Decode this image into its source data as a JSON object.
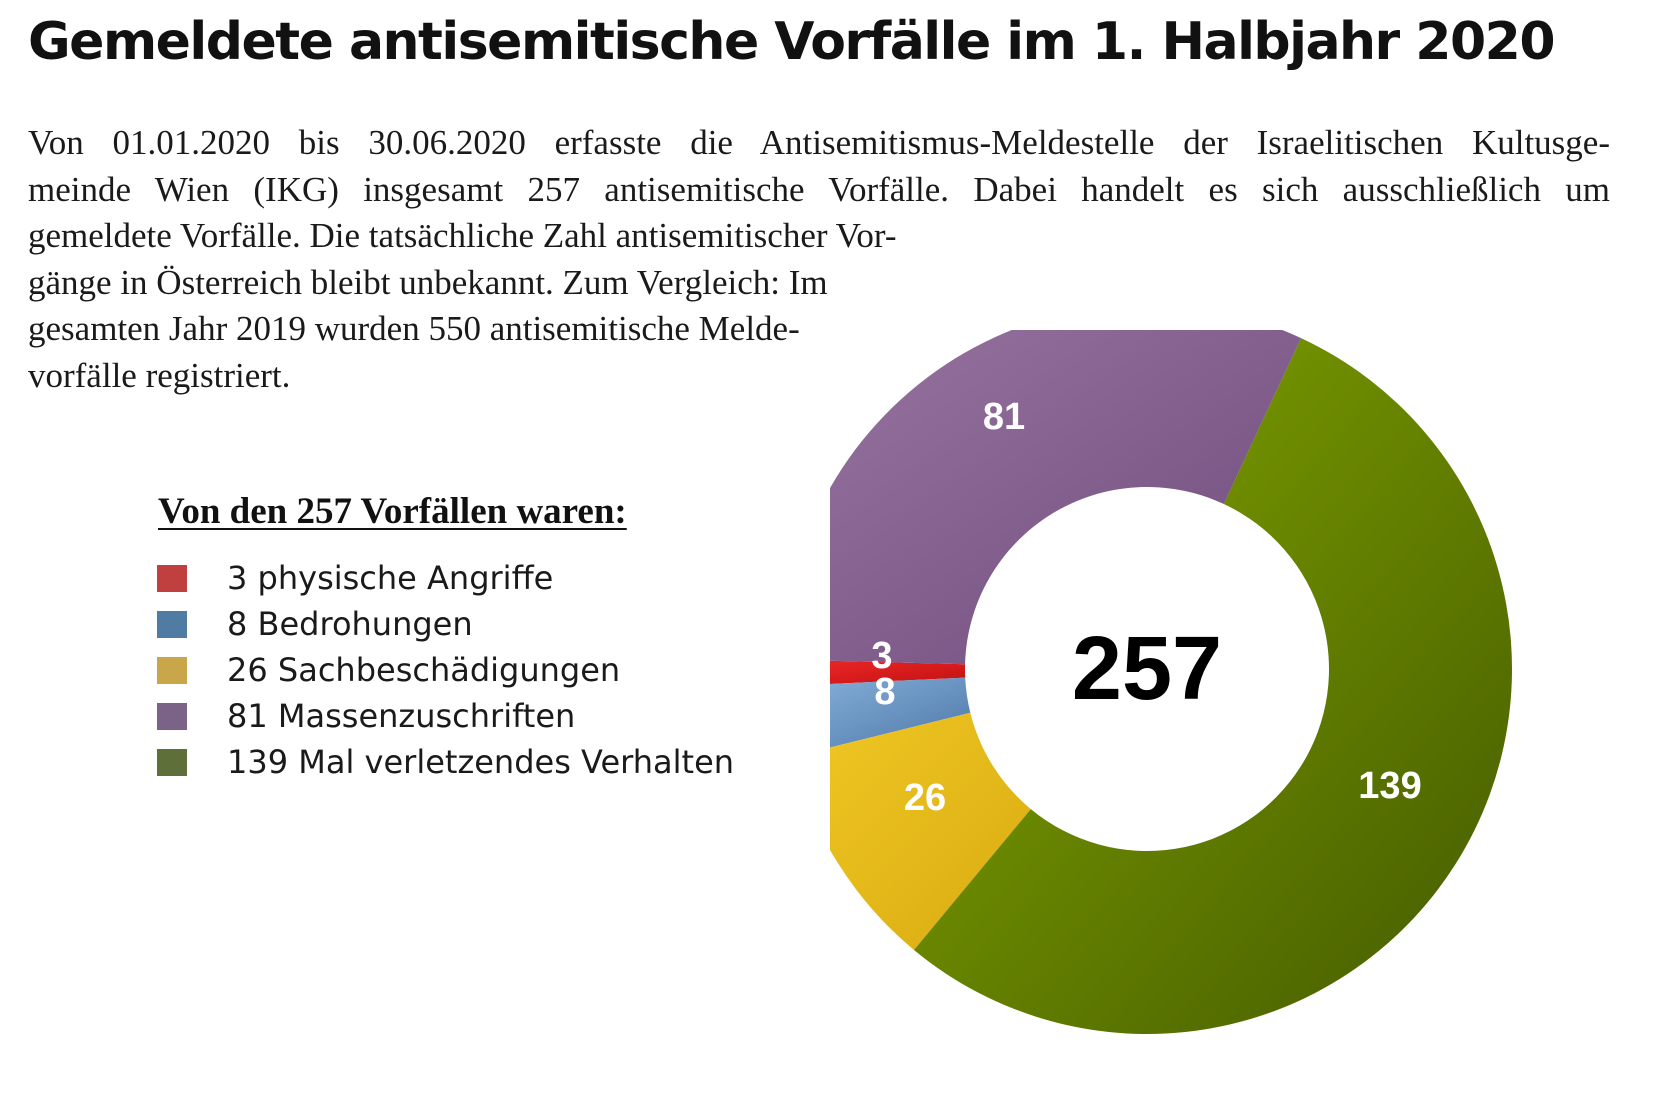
{
  "title": "Gemeldete antisemitische Vorfälle im 1. Halbjahr 2020",
  "intro": {
    "lines": [
      "Von 01.01.2020 bis 30.06.2020 erfasste die Antisemitismus-Meldestelle der Israelitischen Kultusge-",
      "meinde Wien (IKG) insgesamt 257 antisemitische Vorfälle. Dabei handelt es sich ausschließlich um",
      "gemeldete Vorfälle. Die tatsächliche Zahl antisemitischer Vor-",
      "gänge in Österreich bleibt unbekannt. Zum Vergleich: Im",
      "gesamten Jahr 2019 wurden 550 antisemitische Melde-",
      "vorfälle registriert."
    ]
  },
  "legend": {
    "title": "Von den 257 Vorfällen waren:",
    "items": [
      {
        "label": "3 physische Angriffe",
        "color": "#c0403f"
      },
      {
        "label": "8 Bedrohungen",
        "color": "#507ba3"
      },
      {
        "label": "26 Sachbeschädigungen",
        "color": "#c9a64a"
      },
      {
        "label": "81 Massenzuschriften",
        "color": "#7a6386"
      },
      {
        "label": "139 Mal verletzendes Verhalten",
        "color": "#5e6f3a"
      }
    ]
  },
  "chart_data": {
    "type": "pie",
    "style": "donut",
    "center_label": "257",
    "total": 257,
    "start_angle_deg": 88.5,
    "direction": "counterclockwise",
    "slices": [
      {
        "label": "3",
        "value": 3,
        "color_light": "#f02a2a",
        "color_dark": "#c21010"
      },
      {
        "label": "8",
        "value": 8,
        "color_light": "#8ab4dd",
        "color_dark": "#4b74a6"
      },
      {
        "label": "26",
        "value": 26,
        "color_light": "#f0c825",
        "color_dark": "#d9ab10"
      },
      {
        "label": "139",
        "value": 139,
        "color_light": "#86a800",
        "color_dark": "#445a00"
      },
      {
        "label": "81",
        "value": 81,
        "color_light": "#9a76a2",
        "color_dark": "#6e4c7c"
      }
    ]
  }
}
